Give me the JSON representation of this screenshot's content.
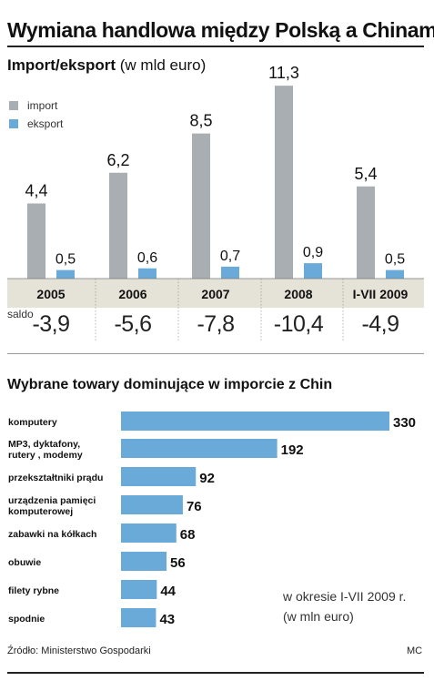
{
  "header": {
    "title": "Wymiana handlowa między Polską a Chinami"
  },
  "section1": {
    "title_bold": "Import/eksport",
    "title_unit": "(w mld euro)",
    "saldo_label": "saldo"
  },
  "section2": {
    "title": "Wybrane towary dominujące w imporcie z Chin",
    "note_line1": "w okresie I-VII 2009 r.",
    "note_line2": "(w mln euro)"
  },
  "footer": {
    "source": "Źródło: Ministerstwo Gospodarki",
    "credit": "MC"
  },
  "colors": {
    "import": "#a9aeb2",
    "eksport": "#6aaad8",
    "band": "#e5e2d8"
  },
  "chart_data": [
    {
      "type": "bar",
      "title": "Import/eksport",
      "unit": "(w mld euro)",
      "categories": [
        "2005",
        "2006",
        "2007",
        "2008",
        "I-VII 2009"
      ],
      "series": [
        {
          "name": "import",
          "values": [
            4.4,
            6.2,
            8.5,
            11.3,
            5.4
          ],
          "labels": [
            "4,4",
            "6,2",
            "8,5",
            "11,3",
            "5,4"
          ]
        },
        {
          "name": "eksport",
          "values": [
            0.5,
            0.6,
            0.7,
            0.9,
            0.5
          ],
          "labels": [
            "0,5",
            "0,6",
            "0,7",
            "0,9",
            "0,5"
          ]
        }
      ],
      "saldo": {
        "values": [
          -3.9,
          -5.6,
          -7.8,
          -10.4,
          -4.9
        ],
        "labels": [
          "-3,9",
          "-5,6",
          "-7,8",
          "-10,4",
          "-4,9"
        ]
      },
      "legend": "top-left",
      "grid": false
    },
    {
      "type": "bar",
      "orientation": "horizontal",
      "title": "Wybrane towary dominujące w imporcie z Chin",
      "unit": "(w mln euro)",
      "categories": [
        [
          "komputery"
        ],
        [
          "MP3, dyktafony,",
          "rutery , modemy"
        ],
        [
          "przekształtniki prądu"
        ],
        [
          "urządzenia pamięci",
          "komputerowej"
        ],
        [
          "zabawki na kółkach"
        ],
        [
          "obuwie"
        ],
        [
          "filety rybne"
        ],
        [
          "spodnie"
        ]
      ],
      "values": [
        330,
        192,
        92,
        76,
        68,
        56,
        44,
        43
      ],
      "labels": [
        "330",
        "192",
        "92",
        "76",
        "68",
        "56",
        "44",
        "43"
      ],
      "xlim": [
        0,
        330
      ]
    }
  ]
}
